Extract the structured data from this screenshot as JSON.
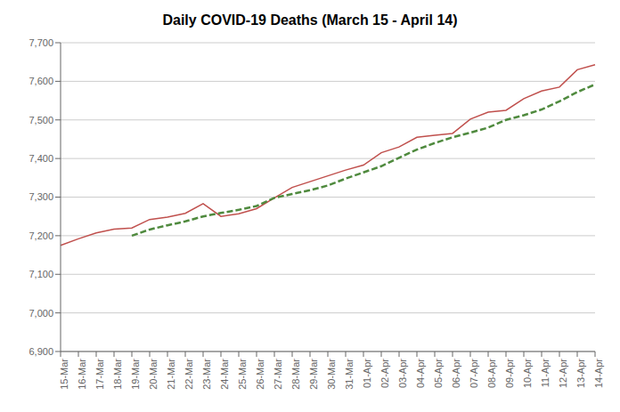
{
  "chart_data": {
    "type": "line",
    "title": "Daily COVID-19 Deaths (March 15 - April 14)",
    "categories": [
      "15-Mar",
      "16-Mar",
      "17-Mar",
      "18-Mar",
      "19-Mar",
      "20-Mar",
      "21-Mar",
      "22-Mar",
      "23-Mar",
      "24-Mar",
      "25-Mar",
      "26-Mar",
      "27-Mar",
      "28-Mar",
      "29-Mar",
      "30-Mar",
      "31-Mar",
      "01-Apr",
      "02-Apr",
      "03-Apr",
      "04-Apr",
      "05-Apr",
      "06-Apr",
      "07-Apr",
      "08-Apr",
      "09-Apr",
      "10-Apr",
      "11-Apr",
      "12-Apr",
      "13-Apr",
      "14-Apr"
    ],
    "series": [
      {
        "color": "#c0504d",
        "line_style": "solid",
        "values": [
          7175,
          7192,
          7207,
          7217,
          7220,
          7242,
          7248,
          7258,
          7283,
          7250,
          7257,
          7270,
          7298,
          7325,
          7340,
          7355,
          7370,
          7383,
          7415,
          7430,
          7455,
          7460,
          7465,
          7502,
          7520,
          7525,
          7555,
          7575,
          7585,
          7630,
          7643
        ]
      },
      {
        "color": "#4f8a3e",
        "line_style": "dashed",
        "values": [
          null,
          null,
          null,
          null,
          7200,
          7216,
          7227,
          7237,
          7250,
          7259,
          7267,
          7277,
          7298,
          7308,
          7318,
          7330,
          7348,
          7364,
          7380,
          7402,
          7423,
          7440,
          7455,
          7467,
          7480,
          7500,
          7512,
          7527,
          7548,
          7572,
          7592
        ]
      }
    ],
    "ylim": [
      6900,
      7700
    ],
    "yticks": [
      {
        "value": 6900,
        "label": "6,900"
      },
      {
        "value": 7000,
        "label": "7,000"
      },
      {
        "value": 7100,
        "label": "7,100"
      },
      {
        "value": 7200,
        "label": "7,200"
      },
      {
        "value": 7300,
        "label": "7,300"
      },
      {
        "value": 7400,
        "label": "7,400"
      },
      {
        "value": 7500,
        "label": "7,500"
      },
      {
        "value": 7600,
        "label": "7,600"
      },
      {
        "value": 7700,
        "label": "7,700"
      }
    ],
    "grid": true
  }
}
